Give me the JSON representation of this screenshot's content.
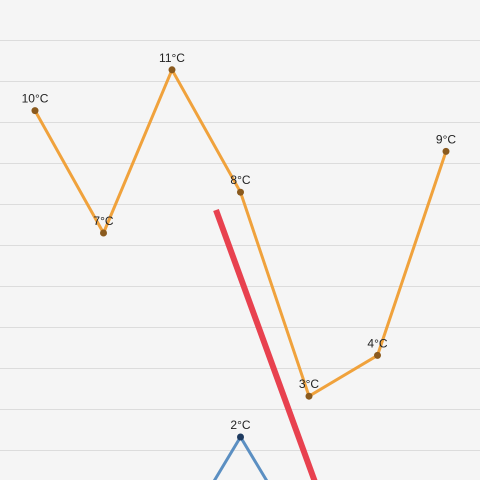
{
  "chart_data": {
    "type": "line",
    "series": [
      {
        "color": "#f0a23c",
        "marker_color": "#8a5a1e",
        "points": [
          {
            "x": 1,
            "y": 10,
            "label": "10°C"
          },
          {
            "x": 2,
            "y": 7,
            "label": "7°C"
          },
          {
            "x": 3,
            "y": 11,
            "label": "11°C"
          },
          {
            "x": 4,
            "y": 8,
            "label": "8°C"
          },
          {
            "x": 5,
            "y": 3,
            "label": "3°C"
          },
          {
            "x": 6,
            "y": 4,
            "label": "4°C"
          },
          {
            "x": 7,
            "y": 9,
            "label": "9°C"
          }
        ]
      },
      {
        "color": "#5b8fc2",
        "marker_color": "#1e3a5f",
        "points": [
          {
            "x": 4,
            "y": 2,
            "label": "2°C"
          }
        ]
      }
    ],
    "units": "°C",
    "grid": true
  },
  "annotations": {
    "red_stroke_color": "#e8414f"
  }
}
